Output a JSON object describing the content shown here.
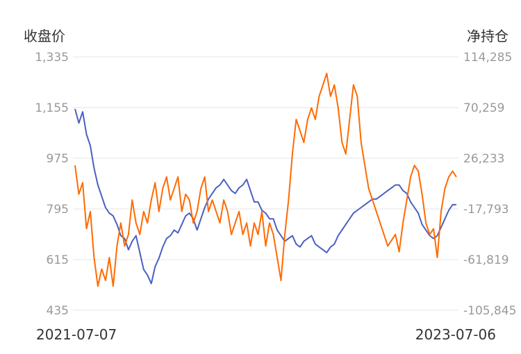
{
  "chart_data": {
    "type": "line",
    "title": "",
    "y_left_label": "收盘价",
    "y_right_label": "净持仓",
    "y_left_ticks": [
      "1,335",
      "1,155",
      "975",
      "795",
      "615",
      "435"
    ],
    "y_right_ticks": [
      "114,285",
      "70,259",
      "26,233",
      "-17,793",
      "-61,819",
      "-105,845"
    ],
    "y_left_range": [
      435,
      1335
    ],
    "y_right_range": [
      -105845,
      114285
    ],
    "x_start": "2021-07-07",
    "x_end": "2023-07-06",
    "grid": true,
    "series": [
      {
        "axis": "left",
        "color": "#4a5fc1",
        "x": [
          0,
          0.01,
          0.02,
          0.03,
          0.04,
          0.05,
          0.06,
          0.07,
          0.08,
          0.09,
          0.1,
          0.11,
          0.12,
          0.13,
          0.14,
          0.15,
          0.16,
          0.17,
          0.18,
          0.19,
          0.2,
          0.21,
          0.22,
          0.23,
          0.24,
          0.25,
          0.26,
          0.27,
          0.28,
          0.29,
          0.3,
          0.31,
          0.32,
          0.33,
          0.34,
          0.35,
          0.36,
          0.37,
          0.38,
          0.39,
          0.4,
          0.41,
          0.42,
          0.43,
          0.44,
          0.45,
          0.46,
          0.47,
          0.48,
          0.49,
          0.5,
          0.51,
          0.52,
          0.53,
          0.54,
          0.55,
          0.56,
          0.57,
          0.58,
          0.59,
          0.6,
          0.61,
          0.62,
          0.63,
          0.64,
          0.65,
          0.66,
          0.67,
          0.68,
          0.69,
          0.7,
          0.71,
          0.72,
          0.73,
          0.74,
          0.75,
          0.76,
          0.77,
          0.78,
          0.79,
          0.8,
          0.81,
          0.82,
          0.83,
          0.84,
          0.85,
          0.86,
          0.87,
          0.88,
          0.89,
          0.9,
          0.91,
          0.92,
          0.93,
          0.94,
          0.95,
          0.96,
          0.97,
          0.98,
          0.99,
          1.0
        ],
        "values": [
          1150,
          1100,
          1140,
          1060,
          1020,
          940,
          880,
          840,
          800,
          780,
          770,
          740,
          700,
          690,
          650,
          680,
          700,
          640,
          580,
          560,
          530,
          590,
          620,
          660,
          690,
          700,
          720,
          710,
          740,
          770,
          780,
          760,
          720,
          760,
          800,
          830,
          850,
          870,
          880,
          900,
          880,
          860,
          850,
          870,
          880,
          900,
          860,
          820,
          820,
          790,
          780,
          760,
          760,
          720,
          700,
          680,
          690,
          700,
          670,
          660,
          680,
          690,
          700,
          670,
          660,
          650,
          640,
          660,
          670,
          700,
          720,
          740,
          760,
          780,
          790,
          800,
          810,
          820,
          830,
          830,
          840,
          850,
          860,
          870,
          880,
          880,
          860,
          850,
          820,
          800,
          780,
          740,
          720,
          700,
          690,
          700,
          730,
          760,
          790,
          810,
          810
        ]
      },
      {
        "axis": "right",
        "color": "#ff6a00",
        "x": [
          0,
          0.01,
          0.02,
          0.03,
          0.04,
          0.05,
          0.06,
          0.07,
          0.08,
          0.09,
          0.1,
          0.11,
          0.12,
          0.13,
          0.14,
          0.15,
          0.16,
          0.17,
          0.18,
          0.19,
          0.2,
          0.21,
          0.22,
          0.23,
          0.24,
          0.25,
          0.26,
          0.27,
          0.28,
          0.29,
          0.3,
          0.31,
          0.32,
          0.33,
          0.34,
          0.35,
          0.36,
          0.37,
          0.38,
          0.39,
          0.4,
          0.41,
          0.42,
          0.43,
          0.44,
          0.45,
          0.46,
          0.47,
          0.48,
          0.49,
          0.5,
          0.51,
          0.52,
          0.53,
          0.54,
          0.55,
          0.56,
          0.57,
          0.58,
          0.59,
          0.6,
          0.61,
          0.62,
          0.63,
          0.64,
          0.65,
          0.66,
          0.67,
          0.68,
          0.69,
          0.7,
          0.71,
          0.72,
          0.73,
          0.74,
          0.75,
          0.76,
          0.77,
          0.78,
          0.79,
          0.8,
          0.81,
          0.82,
          0.83,
          0.84,
          0.85,
          0.86,
          0.87,
          0.88,
          0.89,
          0.9,
          0.91,
          0.92,
          0.93,
          0.94,
          0.95,
          0.96,
          0.97,
          0.98,
          0.99,
          1.0
        ],
        "values": [
          20000,
          -5000,
          5000,
          -35000,
          -20000,
          -60000,
          -85000,
          -70000,
          -80000,
          -60000,
          -85000,
          -50000,
          -30000,
          -50000,
          -40000,
          -10000,
          -30000,
          -40000,
          -20000,
          -30000,
          -10000,
          5000,
          -20000,
          0,
          10000,
          -10000,
          0,
          10000,
          -20000,
          -5000,
          -10000,
          -30000,
          -20000,
          0,
          10000,
          -20000,
          -10000,
          -20000,
          -30000,
          -10000,
          -20000,
          -40000,
          -30000,
          -20000,
          -40000,
          -30000,
          -50000,
          -30000,
          -40000,
          -20000,
          -50000,
          -30000,
          -40000,
          -60000,
          -80000,
          -40000,
          -10000,
          30000,
          60000,
          50000,
          40000,
          60000,
          70000,
          60000,
          80000,
          90000,
          100000,
          80000,
          90000,
          70000,
          40000,
          30000,
          60000,
          90000,
          80000,
          40000,
          20000,
          0,
          -10000,
          -20000,
          -30000,
          -40000,
          -50000,
          -45000,
          -40000,
          -55000,
          -30000,
          -10000,
          10000,
          20000,
          15000,
          -5000,
          -30000,
          -40000,
          -35000,
          -60000,
          -20000,
          0,
          10000,
          15000,
          10000
        ]
      }
    ]
  }
}
